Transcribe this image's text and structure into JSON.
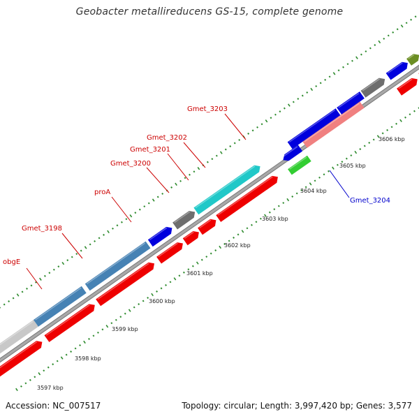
{
  "title": "Geobacter metallireducens GS-15, complete genome",
  "footer": {
    "accession": "Accession: NC_007517",
    "summary": "Topology: circular; Length: 3,997,420 bp; Genes: 3,577"
  },
  "colors": {
    "backbone": "#a8a8a8",
    "tick": "#2e8b2e",
    "forward_label": "#cc0000",
    "reverse_label": "#0000cc"
  },
  "scale_labels": [
    "3597 kbp",
    "3598 kbp",
    "3599 kbp",
    "3600 kbp",
    "3601 kbp",
    "3602 kbp",
    "3603 kbp",
    "3604 kbp",
    "3605 kbp",
    "3606 kbp"
  ],
  "gene_labels": [
    {
      "text": "obgE",
      "side": "forward"
    },
    {
      "text": "Gmet_3198",
      "side": "forward"
    },
    {
      "text": "proA",
      "side": "forward"
    },
    {
      "text": "Gmet_3200",
      "side": "forward"
    },
    {
      "text": "Gmet_3201",
      "side": "forward"
    },
    {
      "text": "Gmet_3202",
      "side": "forward"
    },
    {
      "text": "Gmet_3203",
      "side": "forward"
    },
    {
      "text": "Gmet_3204",
      "side": "reverse"
    }
  ],
  "features": [
    {
      "track": "outer",
      "color": "#f08080"
    },
    {
      "track": "outer",
      "color": "#f08080"
    },
    {
      "track": "outer",
      "color": "#c8c8c8"
    },
    {
      "track": "outer",
      "color": "#4682b4"
    },
    {
      "track": "outer",
      "color": "#4682b4"
    },
    {
      "track": "outer",
      "color": "#0000dd"
    },
    {
      "track": "outer",
      "color": "#6e6e6e"
    },
    {
      "track": "outer",
      "color": "#20c8c8"
    },
    {
      "track": "outer",
      "color": "#0000dd"
    },
    {
      "track": "outer",
      "color": "#0000dd"
    },
    {
      "track": "outer",
      "color": "#6e6e6e"
    },
    {
      "track": "outer",
      "color": "#0000dd"
    },
    {
      "track": "outer",
      "color": "#6b8e23"
    },
    {
      "track": "inner",
      "color": "#ee0000"
    },
    {
      "track": "inner",
      "color": "#ee0000"
    },
    {
      "track": "inner",
      "color": "#ee0000"
    },
    {
      "track": "inner",
      "color": "#ee0000"
    },
    {
      "track": "inner",
      "color": "#ee0000"
    },
    {
      "track": "inner",
      "color": "#ee0000"
    },
    {
      "track": "inner",
      "color": "#ee0000"
    },
    {
      "track": "inner",
      "color": "#ee0000"
    },
    {
      "track": "inner",
      "color": "#ee0000"
    },
    {
      "track": "inner",
      "color": "#ee0000"
    },
    {
      "track": "inner",
      "color": "#ee0000"
    },
    {
      "track": "inner",
      "color": "#0000dd"
    },
    {
      "track": "inner",
      "color": "#32cd32"
    },
    {
      "track": "inner",
      "color": "#f08080"
    }
  ]
}
